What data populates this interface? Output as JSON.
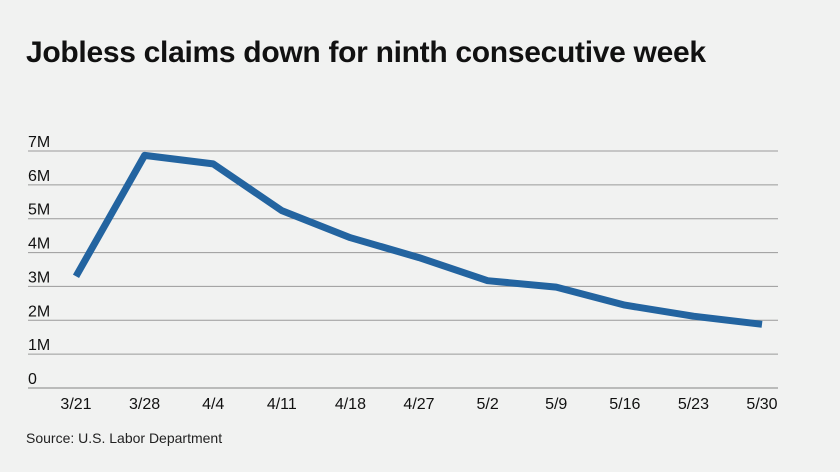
{
  "title": "Jobless claims down for ninth consecutive week",
  "source": "Source: U.S. Labor Department",
  "chart_data": {
    "type": "line",
    "title": "Jobless claims down for ninth consecutive week",
    "categories": [
      "3/21",
      "3/28",
      "4/4",
      "4/11",
      "4/18",
      "4/27",
      "5/2",
      "5/9",
      "5/16",
      "5/23",
      "5/30"
    ],
    "series": [
      {
        "values": [
          3300000,
          6870000,
          6620000,
          5240000,
          4440000,
          3850000,
          3170000,
          2980000,
          2450000,
          2120000,
          1880000
        ],
        "color": "#2364a0"
      }
    ],
    "y_ticks": [
      {
        "value": 0,
        "label": "0"
      },
      {
        "value": 1000000,
        "label": "1M"
      },
      {
        "value": 2000000,
        "label": "2M"
      },
      {
        "value": 3000000,
        "label": "3M"
      },
      {
        "value": 4000000,
        "label": "4M"
      },
      {
        "value": 5000000,
        "label": "5M"
      },
      {
        "value": 6000000,
        "label": "6M"
      },
      {
        "value": 7000000,
        "label": "7M"
      }
    ],
    "ylim": [
      0,
      7000000
    ],
    "xlabel": "",
    "ylabel": "",
    "grid": true,
    "legend": "none",
    "gridline_color": "#9a9a9a"
  }
}
